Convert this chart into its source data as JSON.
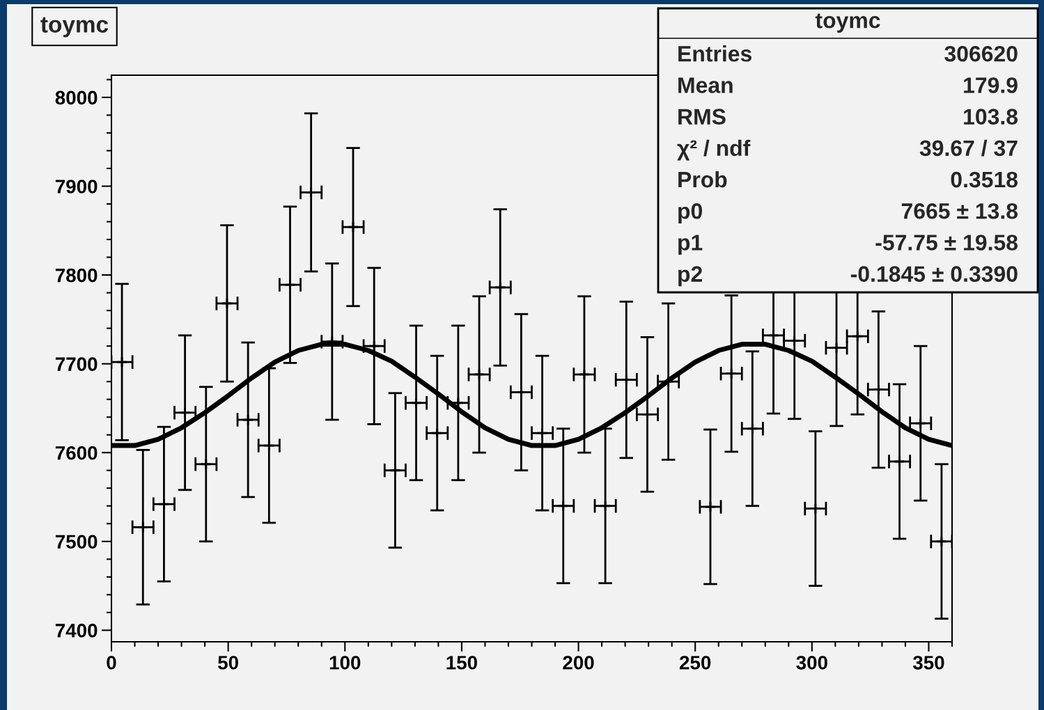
{
  "chart_data": {
    "type": "scatter",
    "title": "toymc",
    "annotations": [
      "toymc",
      "Entries",
      "306620",
      "Mean",
      "179.9",
      "RMS",
      "103.8",
      "χ² / ndf",
      "39.67 / 37",
      "Prob",
      "0.3518",
      "p0",
      "7665 ± 13.8",
      "p1",
      "-57.75 ± 19.58",
      "p2",
      "-0.1845 ± 0.3390"
    ],
    "x": [
      4.5,
      13.5,
      22.5,
      31.5,
      40.5,
      49.5,
      58.5,
      67.5,
      76.5,
      85.5,
      94.5,
      103.5,
      112.5,
      121.5,
      130.5,
      139.5,
      148.5,
      157.5,
      166.5,
      175.5,
      184.5,
      193.5,
      202.5,
      211.5,
      220.5,
      229.5,
      238.5,
      247.5,
      256.5,
      265.5,
      274.5,
      283.5,
      292.5,
      301.5,
      310.5,
      319.5,
      328.5,
      337.5,
      346.5,
      355.5
    ],
    "series": [
      {
        "type": "scatter",
        "color": "#000000",
        "marker": "cross",
        "values": [
          7702,
          7516,
          7542,
          7645,
          7587,
          7768,
          7637,
          7608,
          7789,
          7893,
          7725,
          7854,
          7720,
          7580,
          7656,
          7622,
          7656,
          7688,
          7786,
          7668,
          7622,
          7540,
          7688,
          7540,
          7682,
          7643,
          7680,
          null,
          7539,
          7689,
          7627,
          7732,
          7726,
          7537,
          7718,
          7731,
          7671,
          7590,
          7633,
          7500
        ],
        "errors": [
          88,
          87,
          87,
          87,
          87,
          88,
          87,
          87,
          88,
          89,
          88,
          89,
          88,
          87,
          87,
          87,
          87,
          88,
          88,
          88,
          87,
          87,
          88,
          87,
          88,
          87,
          88,
          null,
          87,
          88,
          87,
          88,
          88,
          87,
          88,
          88,
          88,
          87,
          87,
          87
        ],
        "xerrors": [
          4.5,
          4.5,
          4.5,
          4.5,
          4.5,
          4.5,
          4.5,
          4.5,
          4.5,
          4.5,
          4.5,
          4.5,
          4.5,
          4.5,
          4.5,
          4.5,
          4.5,
          4.5,
          4.5,
          4.5,
          4.5,
          4.5,
          4.5,
          4.5,
          4.5,
          4.5,
          4.5,
          null,
          4.5,
          4.5,
          4.5,
          4.5,
          4.5,
          4.5,
          4.5,
          4.5,
          4.5,
          4.5,
          4.5,
          4.5
        ]
      },
      {
        "type": "line",
        "color": "#000000",
        "line_style": "solid",
        "x": [
          0,
          10,
          20,
          30,
          40,
          50,
          60,
          70,
          80,
          90,
          100,
          110,
          120,
          130,
          140,
          150,
          160,
          170,
          180,
          190,
          200,
          210,
          220,
          230,
          240,
          250,
          260,
          270,
          280,
          290,
          300,
          310,
          320,
          330,
          340,
          350,
          360
        ],
        "values": [
          7608,
          7608,
          7615,
          7628,
          7645,
          7664,
          7684,
          7702,
          7715,
          7722,
          7722,
          7715,
          7703,
          7685,
          7666,
          7646,
          7628,
          7615,
          7608,
          7608,
          7615,
          7628,
          7645,
          7664,
          7684,
          7702,
          7715,
          7722,
          7722,
          7715,
          7703,
          7685,
          7666,
          7646,
          7628,
          7615,
          7608
        ]
      }
    ],
    "xlim": [
      0,
      360
    ],
    "ylim": [
      7387,
      8025
    ],
    "xticks": [
      0,
      {
        "value": 10,
        "label": null
      },
      {
        "value": 20,
        "label": null
      },
      {
        "value": 30,
        "label": null
      },
      {
        "value": 40,
        "label": null
      },
      50,
      {
        "value": 60,
        "label": null
      },
      {
        "value": 70,
        "label": null
      },
      {
        "value": 80,
        "label": null
      },
      {
        "value": 90,
        "label": null
      },
      100,
      {
        "value": 110,
        "label": null
      },
      {
        "value": 120,
        "label": null
      },
      {
        "value": 130,
        "label": null
      },
      {
        "value": 140,
        "label": null
      },
      150,
      {
        "value": 160,
        "label": null
      },
      {
        "value": 170,
        "label": null
      },
      {
        "value": 180,
        "label": null
      },
      {
        "value": 190,
        "label": null
      },
      200,
      {
        "value": 210,
        "label": null
      },
      {
        "value": 220,
        "label": null
      },
      {
        "value": 230,
        "label": null
      },
      {
        "value": 240,
        "label": null
      },
      250,
      {
        "value": 260,
        "label": null
      },
      {
        "value": 270,
        "label": null
      },
      {
        "value": 280,
        "label": null
      },
      {
        "value": 290,
        "label": null
      },
      300,
      {
        "value": 310,
        "label": null
      },
      {
        "value": 320,
        "label": null
      },
      {
        "value": 330,
        "label": null
      },
      {
        "value": 340,
        "label": null
      },
      350,
      {
        "value": 360,
        "label": null
      }
    ],
    "yticks": [
      7400,
      {
        "value": 7420,
        "label": null
      },
      {
        "value": 7440,
        "label": null
      },
      {
        "value": 7460,
        "label": null
      },
      {
        "value": 7480,
        "label": null
      },
      7500,
      {
        "value": 7520,
        "label": null
      },
      {
        "value": 7540,
        "label": null
      },
      {
        "value": 7560,
        "label": null
      },
      {
        "value": 7580,
        "label": null
      },
      7600,
      {
        "value": 7620,
        "label": null
      },
      {
        "value": 7640,
        "label": null
      },
      {
        "value": 7660,
        "label": null
      },
      {
        "value": 7680,
        "label": null
      },
      7700,
      {
        "value": 7720,
        "label": null
      },
      {
        "value": 7740,
        "label": null
      },
      {
        "value": 7760,
        "label": null
      },
      {
        "value": 7780,
        "label": null
      },
      7800,
      {
        "value": 7820,
        "label": null
      },
      {
        "value": 7840,
        "label": null
      },
      {
        "value": 7860,
        "label": null
      },
      {
        "value": 7880,
        "label": null
      },
      7900,
      {
        "value": 7920,
        "label": null
      },
      {
        "value": 7940,
        "label": null
      },
      {
        "value": 7960,
        "label": null
      },
      {
        "value": 7980,
        "label": null
      },
      8000,
      {
        "value": 8020,
        "label": null
      }
    ]
  }
}
